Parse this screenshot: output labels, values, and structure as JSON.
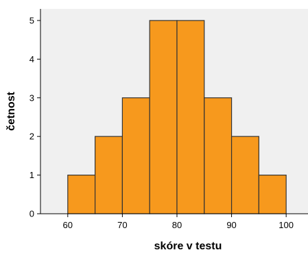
{
  "colors": {
    "plot_background": "#f0f0f0",
    "bar_fill": "#f7991d",
    "bar_stroke": "#333333",
    "axis": "#000000"
  },
  "chart_data": {
    "type": "bar",
    "subtype": "histogram",
    "bins": [
      {
        "from": 60,
        "to": 65,
        "count": 1
      },
      {
        "from": 65,
        "to": 70,
        "count": 2
      },
      {
        "from": 70,
        "to": 75,
        "count": 3
      },
      {
        "from": 75,
        "to": 80,
        "count": 5
      },
      {
        "from": 80,
        "to": 85,
        "count": 5
      },
      {
        "from": 85,
        "to": 90,
        "count": 3
      },
      {
        "from": 90,
        "to": 95,
        "count": 2
      },
      {
        "from": 95,
        "to": 100,
        "count": 1
      }
    ],
    "title": "",
    "xlabel": "skóre v testu",
    "ylabel": "četnost",
    "xlim": [
      55,
      104
    ],
    "ylim": [
      0,
      5.3
    ],
    "xticks": [
      60,
      70,
      80,
      90,
      100
    ],
    "yticks": [
      0,
      1,
      2,
      3,
      4,
      5
    ],
    "grid": false,
    "legend": "none"
  }
}
